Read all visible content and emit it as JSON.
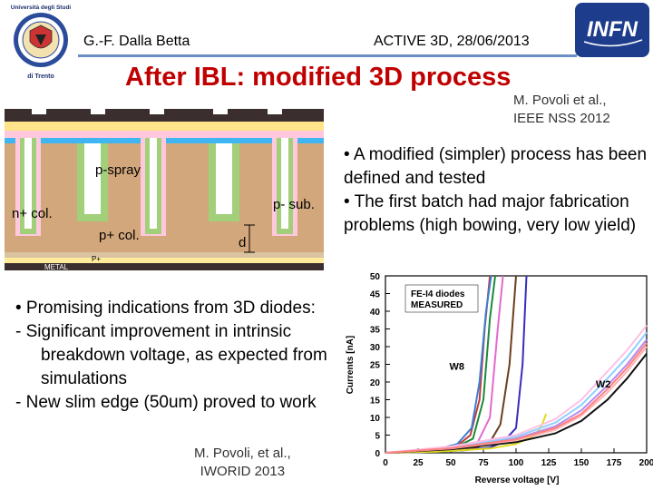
{
  "header": {
    "author": "G.-F. Dalla Betta",
    "event": "ACTIVE 3D, 28/06/2013",
    "university_logo_text": "Università degli Studi di Trento",
    "institute_logo_text": "INFN"
  },
  "title": "After IBL: modified 3D process",
  "citation_top": {
    "line1": "M. Povoli et al.,",
    "line2": "IEEE NSS 2012"
  },
  "right_bullets": [
    "• A modified (simpler) process has been defined and tested",
    "• The first batch had major fabrication problems (high bowing, very low yield)"
  ],
  "left_bullets": {
    "intro": "• Promising indications from 3D diodes:",
    "items": [
      "-  Significant improvement in intrinsic breakdown voltage, as expected from simulations",
      "-  New slim edge (50um) proved to work"
    ]
  },
  "citation_bottom": {
    "line1": "M. Povoli, et al.,",
    "line2": "IWORID 2013"
  },
  "cross_section": {
    "labels": {
      "pspray": "p-spray",
      "nplus": "n+ col.",
      "psub": "p- sub.",
      "pplus": "p+ col.",
      "d": "d",
      "metal": "METAL",
      "pplus_small": "P+"
    },
    "colors": {
      "dark": "#3a2e2e",
      "oxide": "#ffe48a",
      "nregion": "#ffc8dc",
      "spray": "#3fb6f2",
      "poly": "#a2cf7a",
      "sub": "#d3a77c",
      "metal": "#ffeb99",
      "pplus": "#d9c3a1"
    }
  },
  "chart_data": {
    "type": "line",
    "title": "",
    "annotation": "FE-I4 diodes MEASURED",
    "xlabel": "Reverse voltage [V]",
    "ylabel": "Currents [nA]",
    "xlim": [
      0,
      200
    ],
    "ylim": [
      0,
      50
    ],
    "xticks": [
      0,
      25,
      50,
      75,
      100,
      125,
      150,
      175,
      200
    ],
    "yticks": [
      0,
      5,
      10,
      15,
      20,
      25,
      30,
      35,
      40,
      45,
      50
    ],
    "grid": false,
    "series": [
      {
        "name": "",
        "color": "#c43a3a",
        "x": [
          0,
          20,
          40,
          55,
          65,
          72,
          76,
          80
        ],
        "y": [
          0,
          0.5,
          1,
          2,
          5,
          15,
          35,
          50
        ]
      },
      {
        "name": "",
        "color": "#3a7fd5",
        "x": [
          0,
          20,
          40,
          55,
          66,
          72,
          77,
          81
        ],
        "y": [
          0,
          0.6,
          1.1,
          2.5,
          7,
          20,
          40,
          50
        ]
      },
      {
        "name": "",
        "color": "#1a8a3a",
        "x": [
          0,
          20,
          40,
          55,
          67,
          75,
          80,
          84
        ],
        "y": [
          0,
          0.4,
          0.9,
          1.8,
          4,
          15,
          38,
          50
        ]
      },
      {
        "name": "",
        "color": "#e36ad0",
        "x": [
          0,
          20,
          40,
          55,
          70,
          80,
          86,
          90
        ],
        "y": [
          0,
          0.3,
          0.7,
          1.2,
          2.5,
          10,
          35,
          50
        ]
      },
      {
        "name": "",
        "color": "#6b3e1e",
        "x": [
          0,
          25,
          50,
          70,
          80,
          88,
          95,
          100
        ],
        "y": [
          0,
          0.3,
          0.8,
          1.5,
          3,
          8,
          25,
          50
        ]
      },
      {
        "name": "",
        "color": "#3a2cbf",
        "x": [
          0,
          30,
          60,
          80,
          90,
          100,
          105,
          108
        ],
        "y": [
          0,
          0.2,
          0.7,
          1.5,
          3,
          7,
          25,
          50
        ]
      },
      {
        "name": "",
        "color": "#e0dc20",
        "x": [
          0,
          40,
          80,
          100,
          115,
          120,
          122,
          123
        ],
        "y": [
          0,
          0.3,
          1.2,
          2.5,
          5,
          8,
          10,
          11
        ]
      },
      {
        "name": "",
        "color": "#111111",
        "x": [
          0,
          50,
          100,
          130,
          150,
          170,
          185,
          200
        ],
        "y": [
          0,
          1,
          3,
          5.5,
          9,
          15,
          21,
          28
        ]
      },
      {
        "name": "",
        "color": "#ffb3b3",
        "x": [
          0,
          50,
          100,
          130,
          150,
          170,
          185,
          200
        ],
        "y": [
          0,
          1.2,
          3.5,
          6.5,
          10.5,
          17,
          23,
          30
        ]
      },
      {
        "name": "",
        "color": "#b38cf0",
        "x": [
          0,
          50,
          100,
          130,
          150,
          170,
          185,
          200
        ],
        "y": [
          0,
          1.4,
          4,
          7.5,
          12,
          19,
          25,
          32
        ]
      },
      {
        "name": "",
        "color": "#8fd0ff",
        "x": [
          0,
          50,
          100,
          130,
          150,
          170,
          185,
          200
        ],
        "y": [
          0,
          1.6,
          4.5,
          8.5,
          13.5,
          21,
          27,
          34
        ]
      },
      {
        "name": "",
        "color": "#ffc0e6",
        "x": [
          0,
          50,
          100,
          130,
          150,
          170,
          185,
          200
        ],
        "y": [
          0,
          1.8,
          5,
          9.5,
          15,
          23,
          29,
          36
        ]
      },
      {
        "name": "",
        "color": "#ff8080",
        "x": [
          0,
          50,
          100,
          130,
          150,
          170,
          185,
          200
        ],
        "y": [
          0,
          1.3,
          3.8,
          7,
          11,
          18,
          24,
          31
        ]
      }
    ],
    "curve_labels": [
      {
        "text": "W8",
        "x": 49,
        "y": 23.5
      },
      {
        "text": "W2",
        "x": 161,
        "y": 18.5
      }
    ]
  }
}
